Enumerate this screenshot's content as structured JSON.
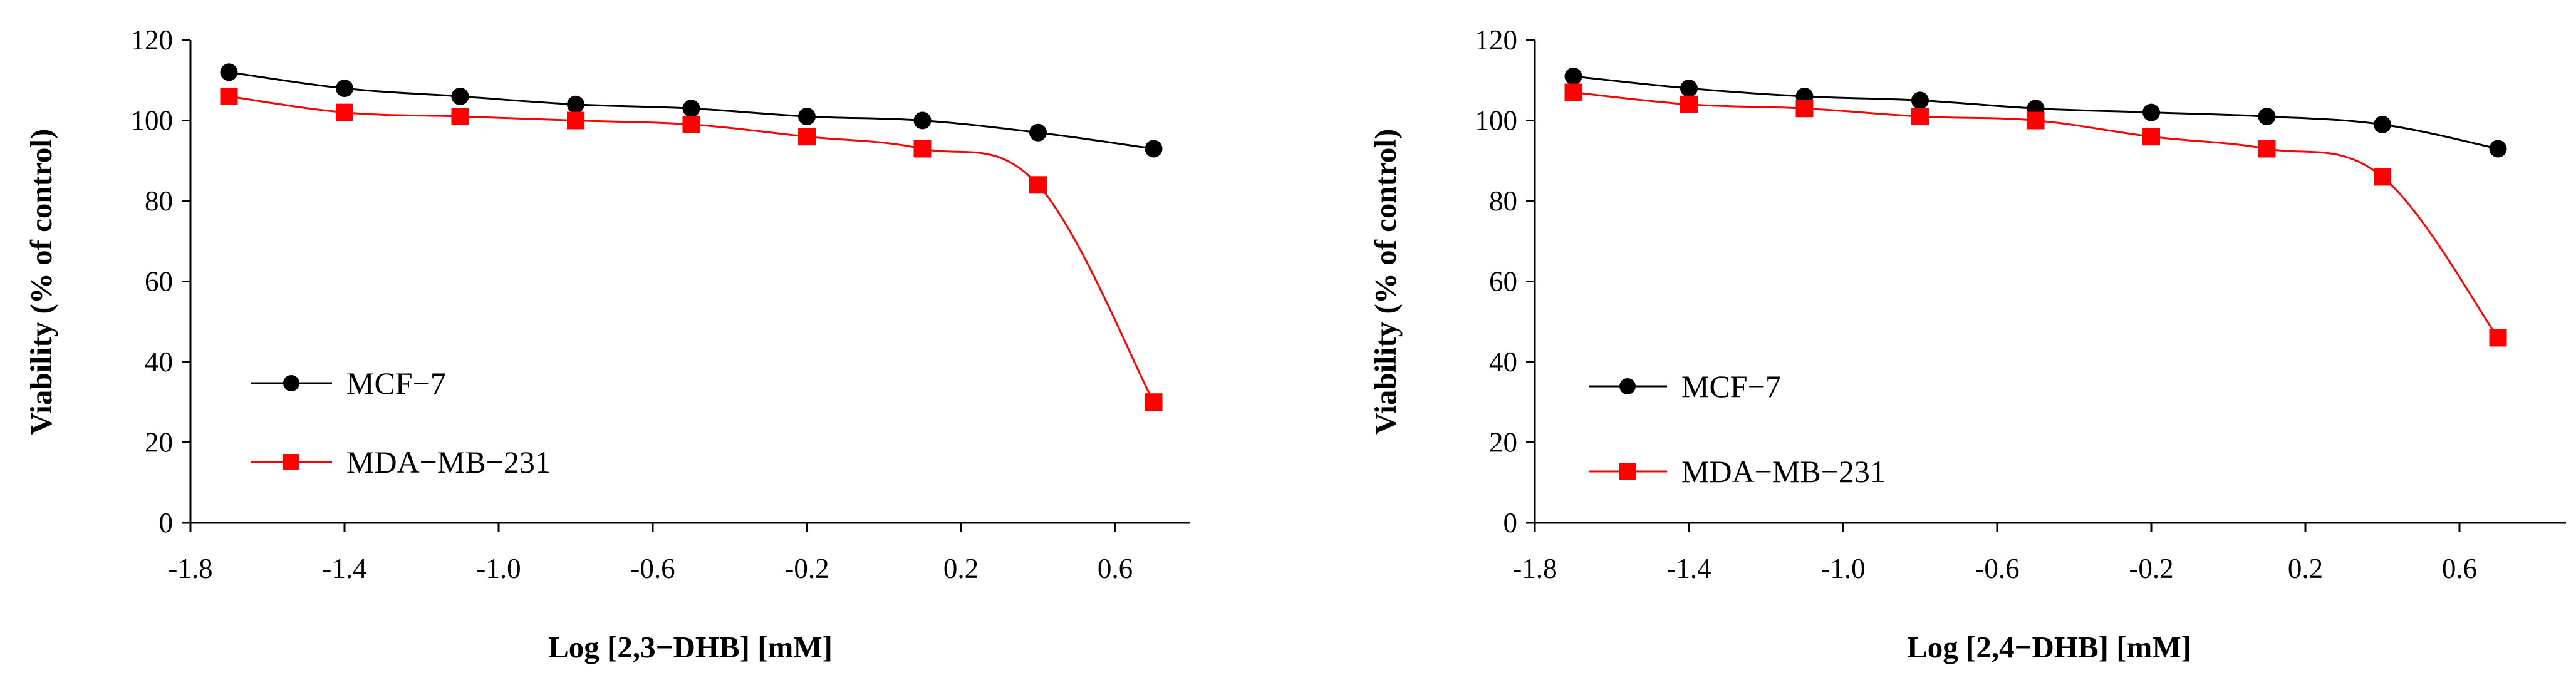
{
  "colors": {
    "mcf7": "#000000",
    "mda": "#ff0000",
    "axis": "#000000"
  },
  "chart_data": [
    {
      "type": "line",
      "title": "",
      "xlabel": "Log [2,3−DHB] [mM]",
      "ylabel": "Viability (% of control)",
      "xlim": [
        -1.8,
        0.8
      ],
      "ylim": [
        0,
        120
      ],
      "xticks": [
        "-1.8",
        "-1.4",
        "-1.0",
        "-0.6",
        "-0.2",
        "0.2",
        "0.6"
      ],
      "xtick_values": [
        -1.8,
        -1.4,
        -1.0,
        -0.6,
        -0.2,
        0.2,
        0.6
      ],
      "yticks": [
        "0",
        "20",
        "40",
        "60",
        "80",
        "100",
        "120"
      ],
      "ytick_values": [
        0,
        20,
        40,
        60,
        80,
        100,
        120
      ],
      "grid": false,
      "legend_position": "bottom-left",
      "series": [
        {
          "name": "MCF−7",
          "marker": "circle",
          "color": "#000000",
          "x": [
            -1.7,
            -1.4,
            -1.1,
            -0.8,
            -0.5,
            -0.2,
            0.1,
            0.4,
            0.7
          ],
          "y": [
            112,
            108,
            106,
            104,
            103,
            101,
            100,
            97,
            93
          ]
        },
        {
          "name": "MDA−MB−231",
          "marker": "square",
          "color": "#ff0000",
          "x": [
            -1.7,
            -1.4,
            -1.1,
            -0.8,
            -0.5,
            -0.2,
            0.1,
            0.4,
            0.7
          ],
          "y": [
            106,
            102,
            101,
            100,
            99,
            96,
            93,
            84,
            30
          ]
        }
      ]
    },
    {
      "type": "line",
      "title": "",
      "xlabel": "Log [2,4−DHB] [mM]",
      "ylabel": "Viability (% of control)",
      "xlim": [
        -1.8,
        0.8
      ],
      "ylim": [
        0,
        120
      ],
      "xticks": [
        "-1.8",
        "-1.4",
        "-1.0",
        "-0.6",
        "-0.2",
        "0.2",
        "0.6"
      ],
      "xtick_values": [
        -1.8,
        -1.4,
        -1.0,
        -0.6,
        -0.2,
        0.2,
        0.6
      ],
      "yticks": [
        "0",
        "20",
        "40",
        "60",
        "80",
        "100",
        "120"
      ],
      "ytick_values": [
        0,
        20,
        40,
        60,
        80,
        100,
        120
      ],
      "grid": false,
      "legend_position": "bottom-left",
      "series": [
        {
          "name": "MCF−7",
          "marker": "circle",
          "color": "#000000",
          "x": [
            -1.7,
            -1.4,
            -1.1,
            -0.8,
            -0.5,
            -0.2,
            0.1,
            0.4,
            0.7
          ],
          "y": [
            111,
            108,
            106,
            105,
            103,
            102,
            101,
            99,
            93
          ]
        },
        {
          "name": "MDA−MB−231",
          "marker": "square",
          "color": "#ff0000",
          "x": [
            -1.7,
            -1.4,
            -1.1,
            -0.8,
            -0.5,
            -0.2,
            0.1,
            0.4,
            0.7
          ],
          "y": [
            107,
            104,
            103,
            101,
            100,
            96,
            93,
            86,
            46
          ]
        }
      ]
    }
  ]
}
